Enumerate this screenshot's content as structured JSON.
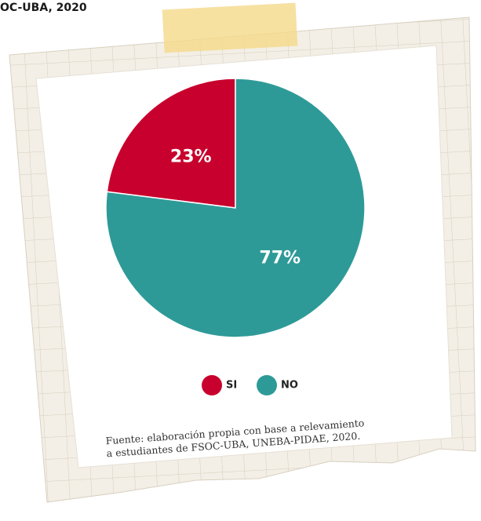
{
  "chart_data": {
    "type": "pie",
    "title": "OC-UBA, 2020",
    "categories": [
      "SI",
      "NO"
    ],
    "values": [
      23,
      77
    ],
    "value_labels": [
      "23%",
      "77%"
    ],
    "colors": [
      "#c8002d",
      "#2e9a98"
    ],
    "source": [
      "Fuente: elaboración propia con base a relevamiento",
      "a estudiantes de FSOC-UBA, UNEBA-PIDAE, 2020."
    ]
  }
}
